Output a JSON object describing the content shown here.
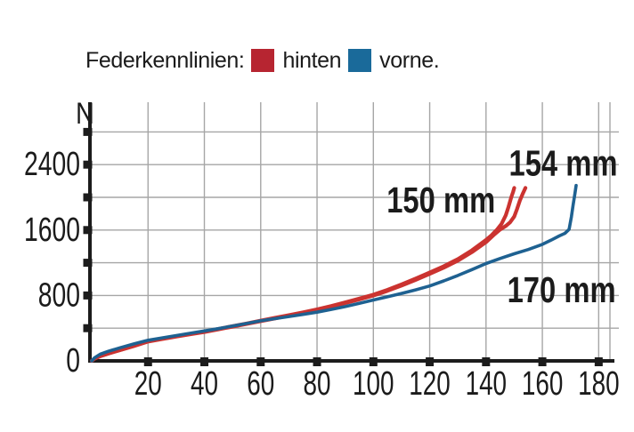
{
  "legend": {
    "title": "Federkennlinien:",
    "items": [
      {
        "label": "hinten",
        "color": "#b72531"
      },
      {
        "label": "vorne.",
        "color": "#1a6a9a"
      }
    ]
  },
  "chart_data": {
    "type": "line",
    "ylabel": "N",
    "xlim": [
      0,
      186
    ],
    "ylim": [
      0,
      3160
    ],
    "grid": true,
    "colors": {
      "grid": "#a6a6a6",
      "axis": "#1c1c1c",
      "red_line": "#cb3330",
      "blue_line": "#1e6191"
    },
    "x_ticks": [
      {
        "value": 20,
        "label": "20"
      },
      {
        "value": 40,
        "label": "40"
      },
      {
        "value": 60,
        "label": "60"
      },
      {
        "value": 80,
        "label": "80"
      },
      {
        "value": 100,
        "label": "100"
      },
      {
        "value": 120,
        "label": "120"
      },
      {
        "value": 140,
        "label": "140"
      },
      {
        "value": 160,
        "label": "160"
      },
      {
        "value": 180,
        "label": "180"
      }
    ],
    "y_ticks_minor": [
      400,
      800,
      1200,
      1600,
      2000,
      2400,
      2800
    ],
    "y_ticks_labeled": [
      {
        "value": 0,
        "label": "0"
      },
      {
        "value": 800,
        "label": "800"
      },
      {
        "value": 1600,
        "label": "1600"
      },
      {
        "value": 2400,
        "label": "2400"
      }
    ],
    "series": [
      {
        "name": "hinten 150 mm",
        "color": "#cb3330",
        "width": 4.2,
        "points": [
          [
            0,
            0
          ],
          [
            1,
            28
          ],
          [
            3,
            58
          ],
          [
            6,
            92
          ],
          [
            10,
            132
          ],
          [
            15,
            186
          ],
          [
            20,
            240
          ],
          [
            25,
            272
          ],
          [
            30,
            302
          ],
          [
            35,
            330
          ],
          [
            40,
            358
          ],
          [
            45,
            391
          ],
          [
            50,
            425
          ],
          [
            55,
            458
          ],
          [
            60,
            492
          ],
          [
            65,
            526
          ],
          [
            70,
            560
          ],
          [
            75,
            594
          ],
          [
            80,
            630
          ],
          [
            85,
            671
          ],
          [
            90,
            716
          ],
          [
            95,
            762
          ],
          [
            100,
            810
          ],
          [
            105,
            869
          ],
          [
            110,
            935
          ],
          [
            115,
            1005
          ],
          [
            120,
            1080
          ],
          [
            125,
            1158
          ],
          [
            130,
            1245
          ],
          [
            135,
            1352
          ],
          [
            140,
            1478
          ],
          [
            142,
            1537
          ],
          [
            144,
            1610
          ],
          [
            145.5,
            1675
          ],
          [
            147,
            1780
          ],
          [
            148,
            1885
          ],
          [
            149,
            2005
          ],
          [
            149.6,
            2065
          ],
          [
            150,
            2115
          ]
        ]
      },
      {
        "name": "hinten 154 mm",
        "color": "#cb3330",
        "width": 4.2,
        "points": [
          [
            0,
            0
          ],
          [
            1,
            27
          ],
          [
            3,
            56
          ],
          [
            6,
            90
          ],
          [
            10,
            130
          ],
          [
            15,
            182
          ],
          [
            20,
            236
          ],
          [
            25,
            267
          ],
          [
            30,
            297
          ],
          [
            35,
            325
          ],
          [
            40,
            353
          ],
          [
            45,
            386
          ],
          [
            50,
            419
          ],
          [
            55,
            452
          ],
          [
            60,
            486
          ],
          [
            65,
            519
          ],
          [
            70,
            553
          ],
          [
            75,
            587
          ],
          [
            80,
            622
          ],
          [
            85,
            663
          ],
          [
            90,
            706
          ],
          [
            95,
            752
          ],
          [
            100,
            799
          ],
          [
            105,
            857
          ],
          [
            110,
            921
          ],
          [
            115,
            990
          ],
          [
            120,
            1064
          ],
          [
            125,
            1140
          ],
          [
            130,
            1226
          ],
          [
            135,
            1330
          ],
          [
            140,
            1452
          ],
          [
            143,
            1548
          ],
          [
            145,
            1605
          ],
          [
            147,
            1650
          ],
          [
            148.5,
            1692
          ],
          [
            150,
            1765
          ],
          [
            151,
            1855
          ],
          [
            152,
            1960
          ],
          [
            153,
            2040
          ],
          [
            154,
            2115
          ]
        ]
      },
      {
        "name": "vorne 170 mm",
        "color": "#1e6191",
        "width": 3.6,
        "points": [
          [
            0,
            0
          ],
          [
            1,
            38
          ],
          [
            3,
            82
          ],
          [
            6,
            118
          ],
          [
            10,
            160
          ],
          [
            15,
            208
          ],
          [
            20,
            252
          ],
          [
            25,
            282
          ],
          [
            30,
            310
          ],
          [
            35,
            338
          ],
          [
            40,
            366
          ],
          [
            45,
            395
          ],
          [
            50,
            426
          ],
          [
            55,
            458
          ],
          [
            60,
            490
          ],
          [
            65,
            516
          ],
          [
            70,
            542
          ],
          [
            75,
            568
          ],
          [
            80,
            596
          ],
          [
            85,
            629
          ],
          [
            90,
            664
          ],
          [
            95,
            703
          ],
          [
            100,
            745
          ],
          [
            105,
            784
          ],
          [
            110,
            825
          ],
          [
            115,
            868
          ],
          [
            120,
            916
          ],
          [
            125,
            978
          ],
          [
            130,
            1045
          ],
          [
            135,
            1116
          ],
          [
            140,
            1190
          ],
          [
            145,
            1252
          ],
          [
            150,
            1310
          ],
          [
            155,
            1362
          ],
          [
            160,
            1425
          ],
          [
            163,
            1475
          ],
          [
            166,
            1528
          ],
          [
            168,
            1560
          ],
          [
            169.5,
            1608
          ],
          [
            170.3,
            1762
          ],
          [
            170.9,
            1905
          ],
          [
            171.5,
            2035
          ],
          [
            172,
            2145
          ]
        ]
      }
    ],
    "annotations": [
      {
        "text": "150 mm",
        "x": 124,
        "y": 1970
      },
      {
        "text": "154 mm",
        "x": 167.4,
        "y": 2420
      },
      {
        "text": "170 mm",
        "x": 166.8,
        "y": 870
      }
    ]
  }
}
